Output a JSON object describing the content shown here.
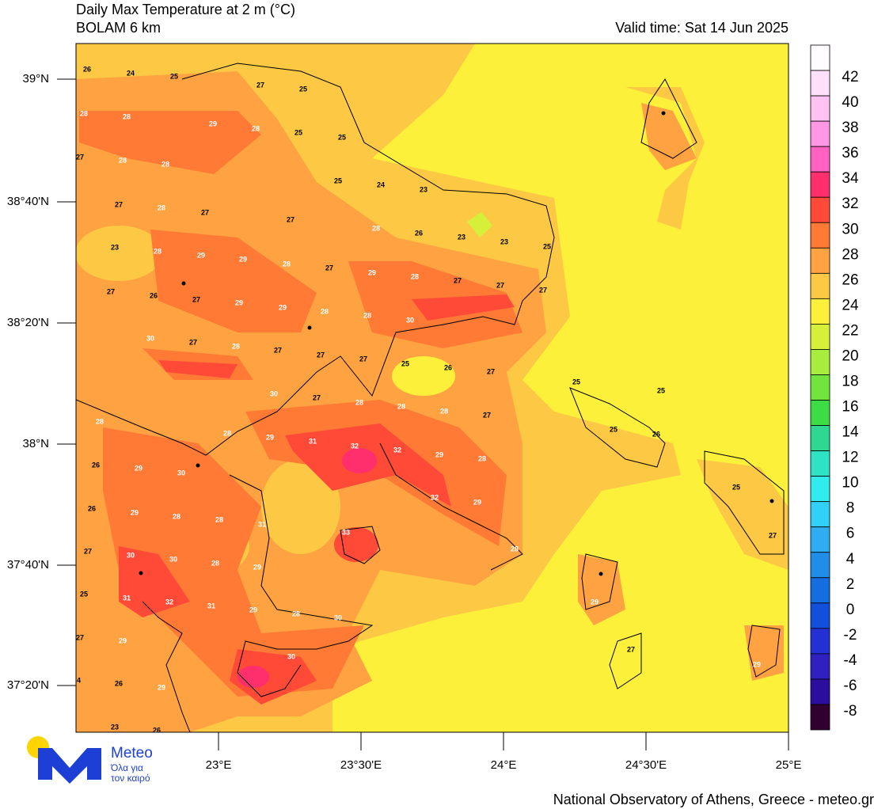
{
  "header": {
    "title": "Daily Max Temperature at 2 m (°C)",
    "subtitle": "BOLAM 6 km",
    "valid_time": "Valid time: Sat 14 Jun 2025"
  },
  "map": {
    "lat_ticks": [
      "39°N",
      "38°40'N",
      "38°20'N",
      "38°N",
      "37°40'N",
      "37°20'N"
    ],
    "lon_ticks": [
      "23°E",
      "23°30'E",
      "24°E",
      "24°30'E",
      "25°E"
    ],
    "map_labels": [
      26,
      24,
      25,
      27,
      25,
      28,
      28,
      29,
      28,
      25,
      25,
      27,
      28,
      28,
      25,
      24,
      23,
      27,
      28,
      27,
      27,
      28,
      26,
      23,
      23,
      25,
      23,
      28,
      29,
      29,
      28,
      27,
      29,
      28,
      27,
      27,
      27,
      27,
      26,
      27,
      29,
      29,
      28,
      28,
      30,
      30,
      27,
      28,
      27,
      27,
      27,
      25,
      26,
      27,
      25,
      25,
      30,
      27,
      28,
      28,
      28,
      27,
      25,
      26,
      28,
      28,
      29,
      31,
      32,
      32,
      29,
      28,
      26,
      29,
      30,
      32,
      29,
      25,
      26,
      29,
      28,
      28,
      31,
      33,
      27,
      28,
      27,
      30,
      30,
      28,
      29,
      25,
      31,
      32,
      31,
      29,
      28,
      30,
      29,
      27,
      29,
      30,
      27,
      29,
      24,
      26,
      29,
      23,
      26
    ]
  },
  "colorbar": {
    "levels": [
      42,
      40,
      38,
      36,
      34,
      32,
      30,
      28,
      26,
      24,
      22,
      20,
      18,
      16,
      14,
      12,
      10,
      8,
      6,
      4,
      2,
      0,
      -2,
      -4,
      -6,
      -8
    ],
    "colors": [
      "#fffcff",
      "#ffe0fb",
      "#ffc2f2",
      "#ff98e4",
      "#ff62c0",
      "#ff2f6e",
      "#ff4a38",
      "#ff7a35",
      "#ffa242",
      "#fdc944",
      "#fdf03a",
      "#d6f03a",
      "#a8ec3c",
      "#72e43e",
      "#3cdc44",
      "#2ed892",
      "#2ee2c4",
      "#30ecec",
      "#30d0f8",
      "#2eaef0",
      "#208ee6",
      "#146ee0",
      "#1250dc",
      "#2230d4",
      "#3020c0",
      "#2c0e9c",
      "#30002e"
    ]
  },
  "logo": {
    "brand": "Meteo",
    "line1": "Όλα για",
    "line2": "τον καιρό"
  },
  "footer": "National Observatory of Athens, Greece - meteo.gr"
}
